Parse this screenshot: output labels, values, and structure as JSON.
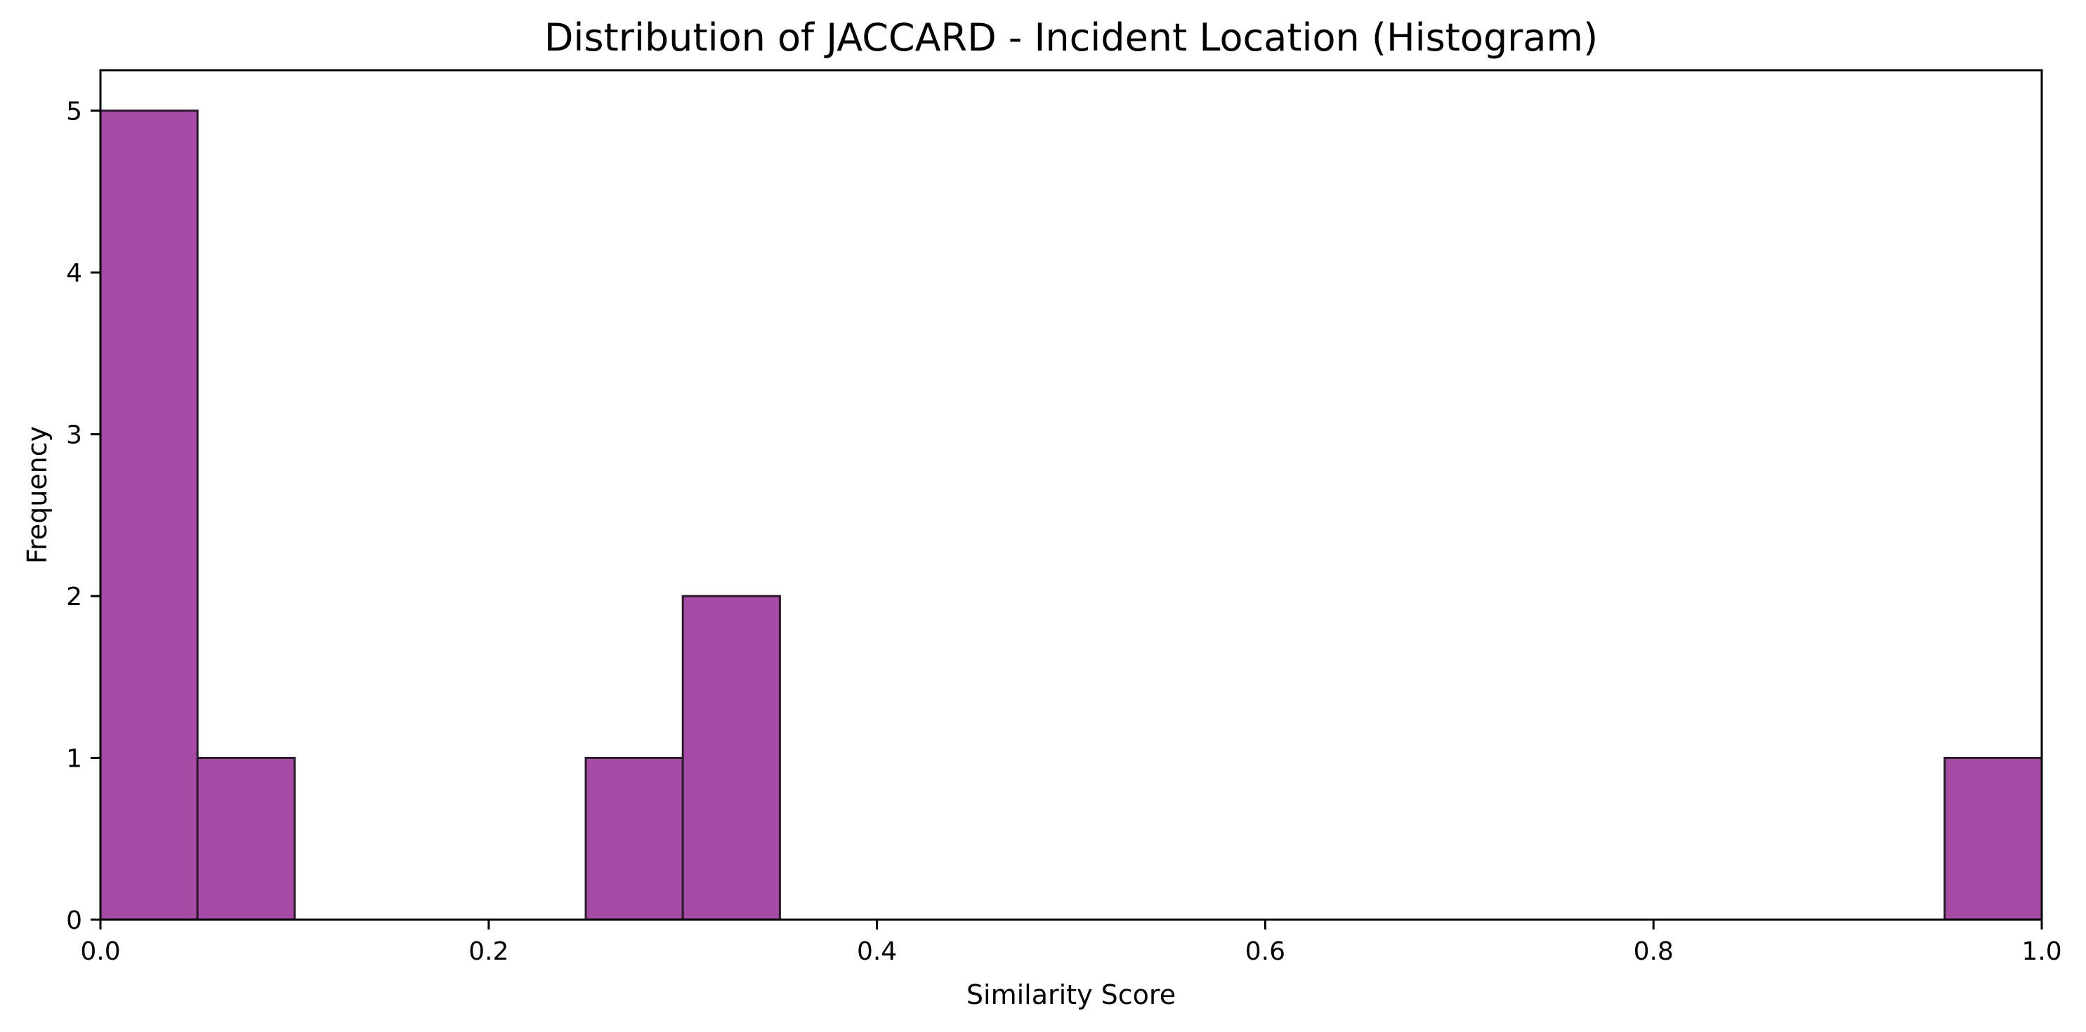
{
  "chart_data": {
    "type": "bar",
    "title": "Distribution of JACCARD - Incident Location (Histogram)",
    "xlabel": "Similarity Score",
    "ylabel": "Frequency",
    "xlim": [
      0,
      1
    ],
    "ylim": [
      0,
      5.25
    ],
    "xticks": [
      0.0,
      0.2,
      0.4,
      0.6,
      0.8,
      1.0
    ],
    "xtick_labels": [
      "0.0",
      "0.2",
      "0.4",
      "0.6",
      "0.8",
      "1.0"
    ],
    "yticks": [
      0,
      1,
      2,
      3,
      4,
      5
    ],
    "ytick_labels": [
      "0",
      "1",
      "2",
      "3",
      "4",
      "5"
    ],
    "bins": [
      {
        "start": 0.0,
        "end": 0.05,
        "count": 5
      },
      {
        "start": 0.05,
        "end": 0.1,
        "count": 1
      },
      {
        "start": 0.25,
        "end": 0.3,
        "count": 1
      },
      {
        "start": 0.3,
        "end": 0.35,
        "count": 2
      },
      {
        "start": 0.95,
        "end": 1.0,
        "count": 1
      }
    ],
    "bar_color": "#a64ca6",
    "edge_color": "#2b1a2b",
    "grid": false,
    "legend": "none"
  }
}
